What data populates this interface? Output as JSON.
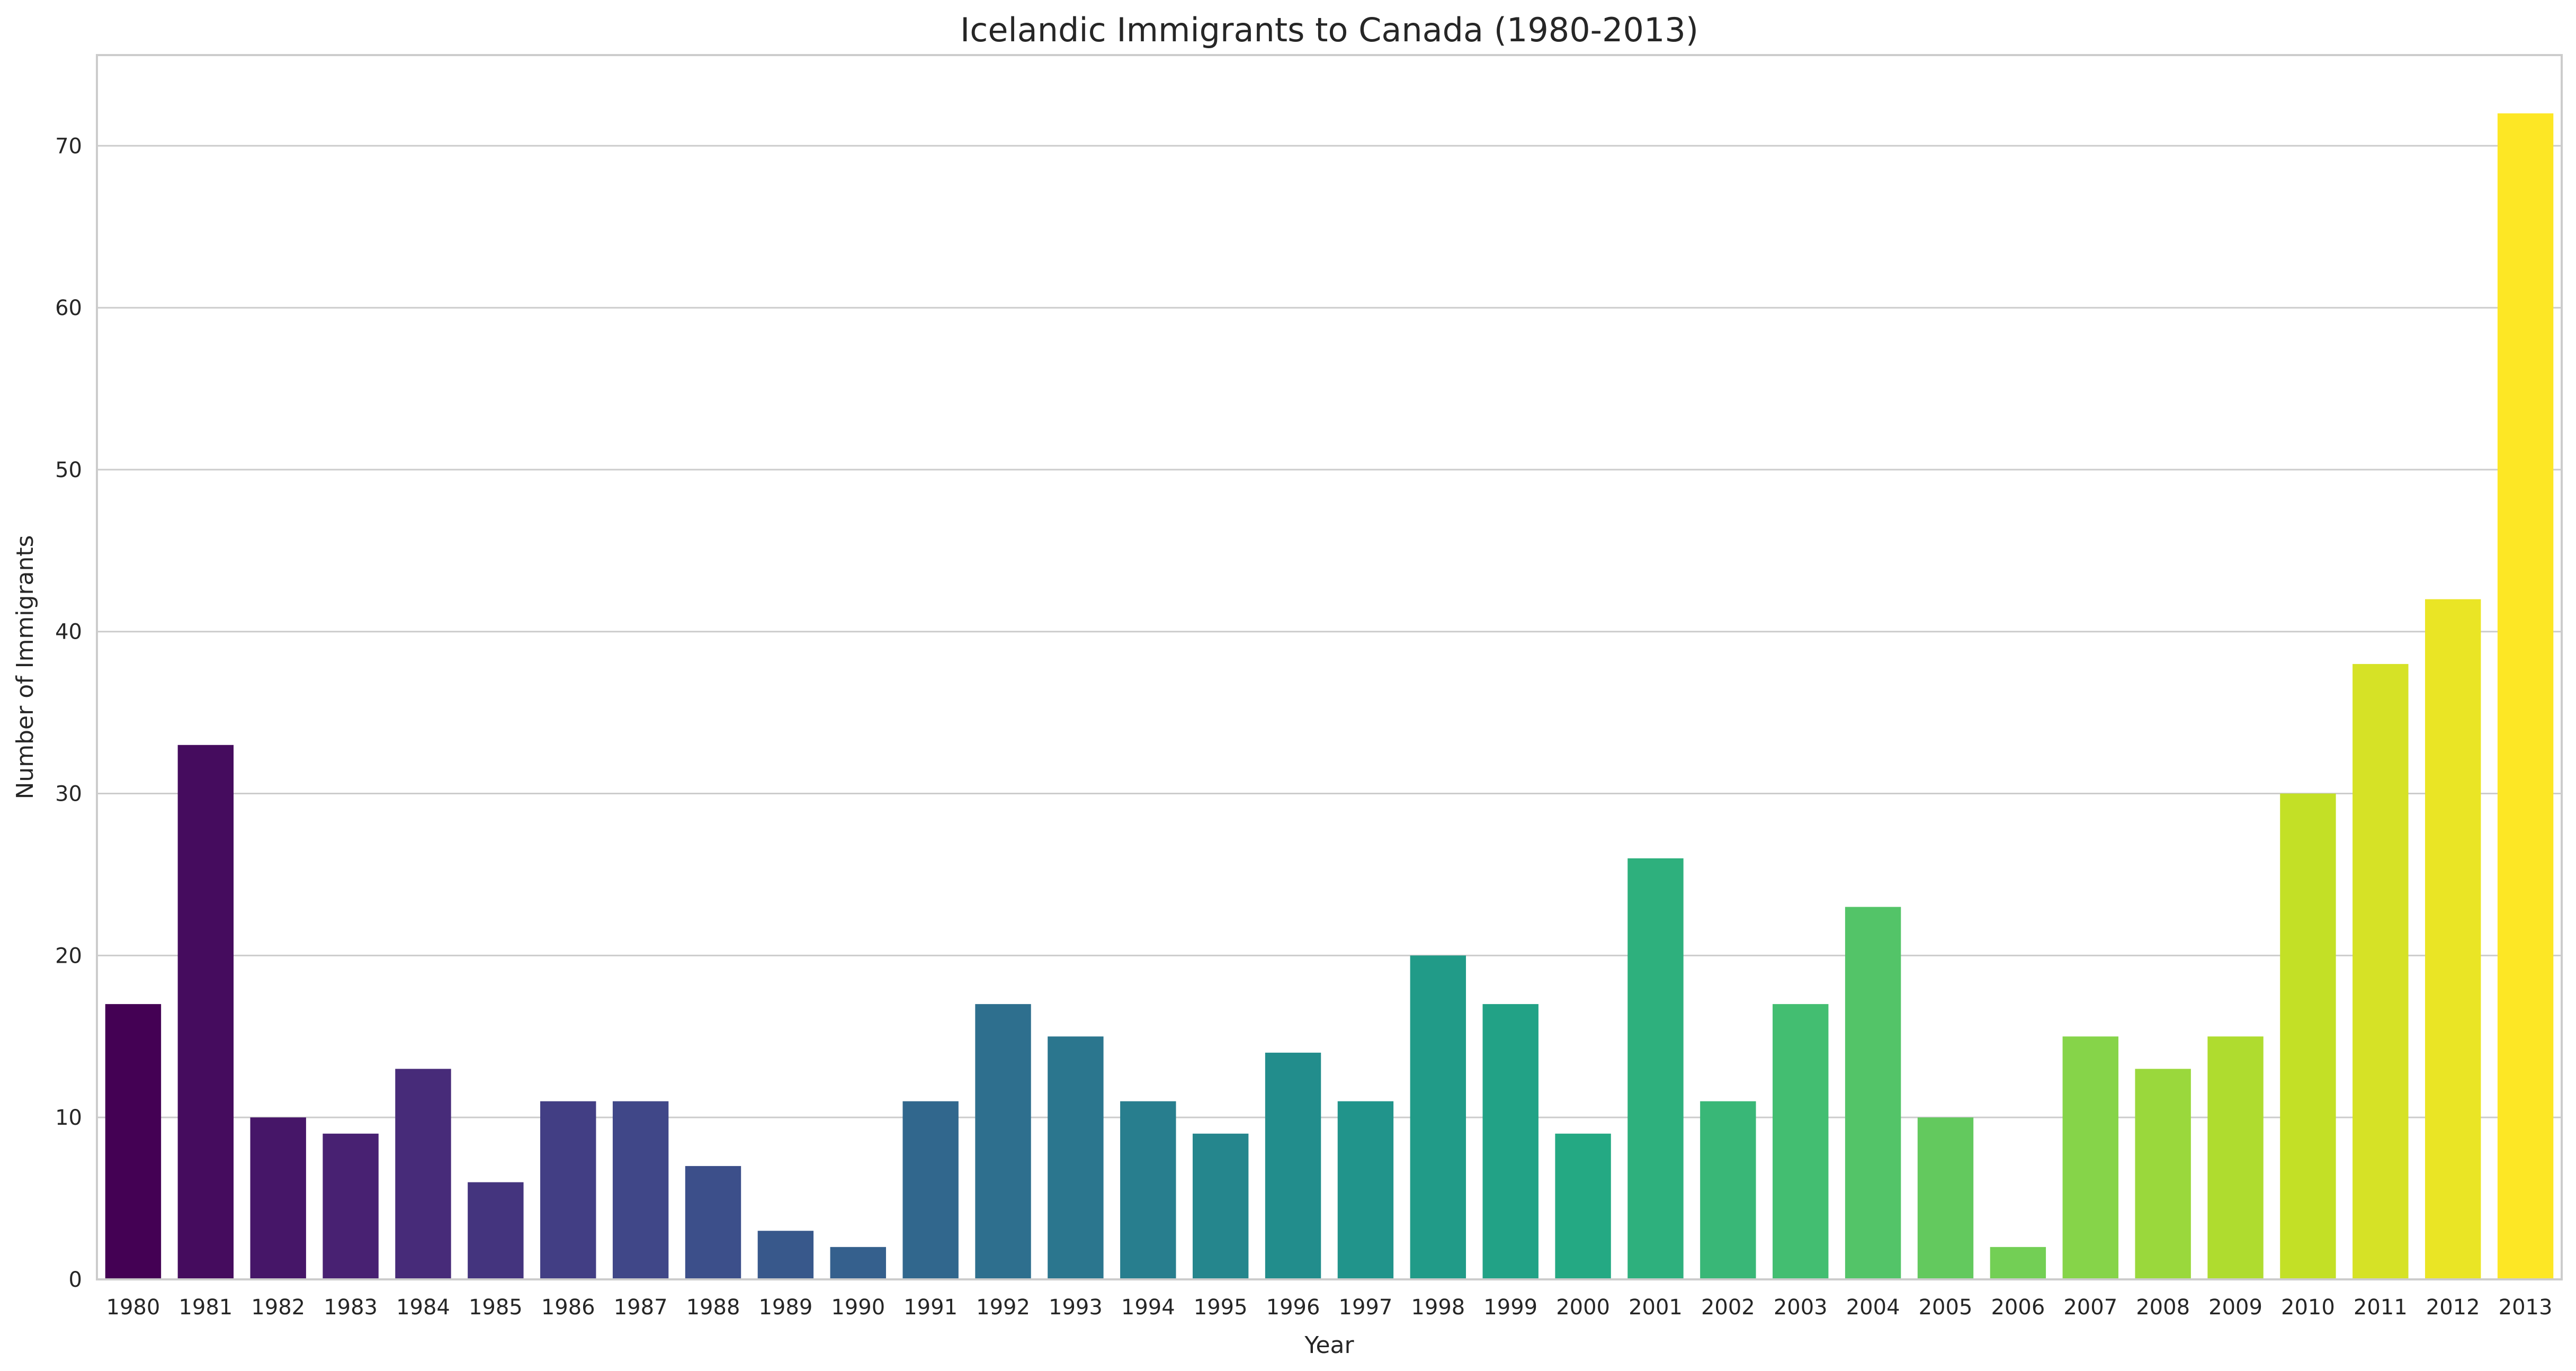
{
  "chart_data": {
    "type": "bar",
    "title": "Icelandic Immigrants to Canada (1980-2013)",
    "xlabel": "Year",
    "ylabel": "Number of Immigrants",
    "categories": [
      "1980",
      "1981",
      "1982",
      "1983",
      "1984",
      "1985",
      "1986",
      "1987",
      "1988",
      "1989",
      "1990",
      "1991",
      "1992",
      "1993",
      "1994",
      "1995",
      "1996",
      "1997",
      "1998",
      "1999",
      "2000",
      "2001",
      "2002",
      "2003",
      "2004",
      "2005",
      "2006",
      "2007",
      "2008",
      "2009",
      "2010",
      "2011",
      "2012",
      "2013"
    ],
    "values": [
      17,
      33,
      10,
      9,
      13,
      6,
      11,
      11,
      7,
      3,
      2,
      11,
      17,
      15,
      11,
      9,
      14,
      11,
      20,
      17,
      9,
      26,
      11,
      17,
      23,
      10,
      2,
      15,
      13,
      15,
      30,
      38,
      42,
      72
    ],
    "yticks": [
      0,
      10,
      20,
      30,
      40,
      50,
      60,
      70
    ],
    "ylim": [
      0,
      75.6
    ],
    "grid": "horizontal",
    "legend": "none",
    "palette": "viridis",
    "colors": {
      "background": "#ffffff",
      "grid": "#cccccc",
      "spine": "#cccccc",
      "text": "#262626"
    }
  }
}
